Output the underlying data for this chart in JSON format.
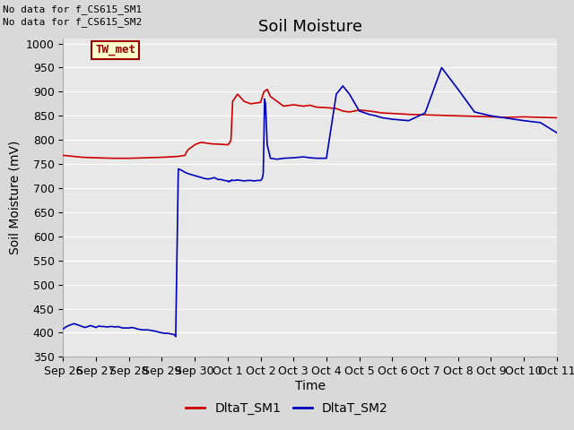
{
  "title": "Soil Moisture",
  "xlabel": "Time",
  "ylabel": "Soil Moisture (mV)",
  "ylim": [
    350,
    1010
  ],
  "yticks": [
    350,
    400,
    450,
    500,
    550,
    600,
    650,
    700,
    750,
    800,
    850,
    900,
    950,
    1000
  ],
  "background_color": "#d9d9d9",
  "axes_bg_color": "#e8e8e8",
  "annotation_text": "No data for f_CS615_SM1\nNo data for f_CS615_SM2",
  "legend_box_text": "TW_met",
  "legend_box_bg": "#ffffcc",
  "legend_box_border": "#990000",
  "sm1_color": "#cc0000",
  "sm2_color": "#0000bb",
  "x_tick_labels": [
    "Sep 26",
    "Sep 27",
    "Sep 28",
    "Sep 29",
    "Sep 30",
    "Oct 1",
    "Oct 2",
    "Oct 3",
    "Oct 4",
    "Oct 5",
    "Oct 6",
    "Oct 7",
    "Oct 8",
    "Oct 9",
    "Oct 10",
    "Oct 11"
  ],
  "sm1_x": [
    0.0,
    0.3,
    0.6,
    1.0,
    1.5,
    2.0,
    2.5,
    3.0,
    3.3,
    3.5,
    3.7,
    3.75,
    3.8,
    4.0,
    4.1,
    4.2,
    4.5,
    4.8,
    5.0,
    5.05,
    5.1,
    5.15,
    5.3,
    5.5,
    5.7,
    6.0,
    6.1,
    6.2,
    6.3,
    6.5,
    6.7,
    7.0,
    7.3,
    7.5,
    7.7,
    8.0,
    8.3,
    8.5,
    8.7,
    9.0,
    9.3,
    9.5,
    9.7,
    10.0,
    10.5,
    11.0,
    11.5,
    12.0,
    12.5,
    13.0,
    13.5,
    14.0,
    14.5,
    15.0
  ],
  "sm1_y": [
    768,
    766,
    764,
    763,
    762,
    762,
    763,
    764,
    765,
    766,
    768,
    775,
    780,
    790,
    793,
    795,
    792,
    791,
    790,
    793,
    800,
    880,
    895,
    880,
    875,
    878,
    900,
    905,
    890,
    880,
    870,
    873,
    870,
    872,
    868,
    867,
    865,
    860,
    858,
    862,
    860,
    858,
    856,
    855,
    853,
    852,
    851,
    850,
    849,
    848,
    847,
    848,
    847,
    846
  ],
  "sm2_x": [
    0.0,
    0.08,
    0.17,
    0.25,
    0.33,
    0.42,
    0.5,
    0.58,
    0.67,
    0.75,
    0.83,
    0.92,
    1.0,
    1.08,
    1.17,
    1.25,
    1.33,
    1.42,
    1.5,
    1.58,
    1.67,
    1.75,
    1.83,
    1.92,
    2.0,
    2.08,
    2.17,
    2.25,
    2.33,
    2.42,
    2.5,
    2.58,
    2.67,
    2.75,
    2.83,
    2.92,
    3.0,
    3.08,
    3.17,
    3.25,
    3.33,
    3.38,
    3.39,
    3.4,
    3.41,
    3.42,
    3.5,
    3.6,
    3.7,
    3.8,
    4.0,
    4.1,
    4.2,
    4.3,
    4.4,
    4.5,
    4.6,
    4.7,
    4.8,
    4.9,
    5.0,
    5.02,
    5.04,
    5.06,
    5.08,
    5.1,
    5.12,
    5.15,
    5.2,
    5.3,
    5.4,
    5.5,
    5.6,
    5.7,
    5.8,
    5.9,
    6.0,
    6.05,
    6.08,
    6.1,
    6.12,
    6.15,
    6.2,
    6.3,
    6.5,
    6.7,
    7.0,
    7.3,
    7.5,
    7.7,
    8.0,
    8.3,
    8.5,
    8.7,
    9.0,
    9.3,
    9.5,
    9.7,
    10.0,
    10.5,
    11.0,
    11.5,
    12.0,
    12.5,
    13.0,
    13.5,
    14.0,
    14.5,
    15.0
  ],
  "sm2_y": [
    408,
    412,
    415,
    417,
    419,
    417,
    415,
    413,
    411,
    413,
    415,
    413,
    411,
    414,
    413,
    413,
    412,
    413,
    413,
    412,
    413,
    411,
    410,
    410,
    410,
    411,
    410,
    408,
    407,
    406,
    406,
    406,
    405,
    404,
    403,
    401,
    400,
    399,
    399,
    398,
    397,
    396,
    395,
    394,
    393,
    392,
    740,
    737,
    733,
    730,
    726,
    724,
    722,
    720,
    719,
    720,
    722,
    718,
    718,
    716,
    715,
    713,
    714,
    715,
    714,
    716,
    717,
    716,
    716,
    717,
    716,
    715,
    716,
    716,
    715,
    716,
    716,
    720,
    730,
    800,
    885,
    875,
    790,
    762,
    760,
    762,
    763,
    765,
    763,
    762,
    762,
    895,
    912,
    895,
    860,
    853,
    850,
    846,
    843,
    840,
    856,
    950,
    905,
    858,
    850,
    845,
    840,
    836,
    815
  ],
  "title_fontsize": 13,
  "axis_fontsize": 10,
  "tick_fontsize": 9,
  "legend_fontsize": 10,
  "figsize": [
    6.4,
    4.8
  ],
  "dpi": 100
}
